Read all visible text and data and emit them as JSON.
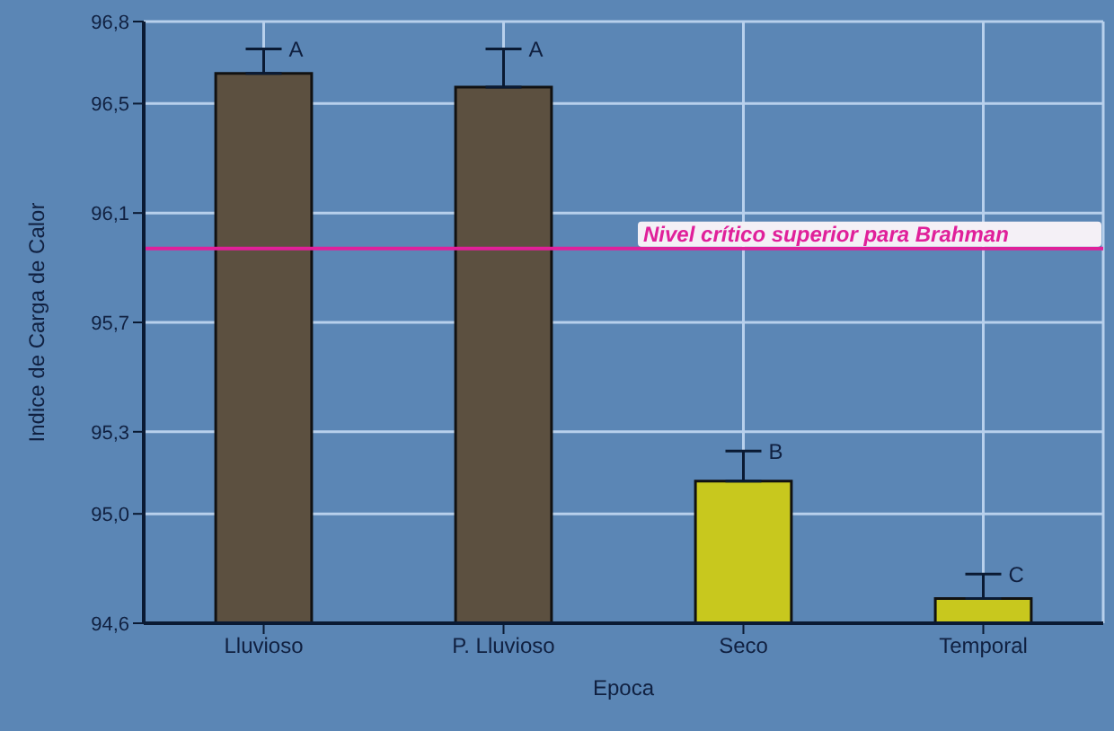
{
  "chart_data": {
    "type": "bar",
    "xlabel": "Epoca",
    "ylabel": "Indice de Carga de Calor",
    "categories": [
      "Lluvioso",
      "P. Lluvioso",
      "Seco",
      "Temporal"
    ],
    "values": [
      96.61,
      96.56,
      95.12,
      94.69
    ],
    "colors": [
      "#5c5040",
      "#5c5040",
      "#c8c81e",
      "#c8c81e"
    ],
    "errors": [
      [
        96.61,
        96.7
      ],
      [
        96.56,
        96.7
      ],
      [
        95.12,
        95.23
      ],
      [
        94.69,
        94.78
      ]
    ],
    "ylim": [
      94.6,
      96.8
    ],
    "yticks": [
      {
        "value": 94.6,
        "label": "94,6"
      },
      {
        "value": 95.0,
        "label": "95,0"
      },
      {
        "value": 95.3,
        "label": "95,3"
      },
      {
        "value": 95.7,
        "label": "95,7"
      },
      {
        "value": 96.1,
        "label": "96,1"
      },
      {
        "value": 96.5,
        "label": "96,5"
      },
      {
        "value": 96.8,
        "label": "96,8"
      }
    ],
    "grid": true,
    "ref_lines": [
      {
        "axis": "y",
        "value": 95.97,
        "label": "Nivel crítico superior para Brahman",
        "color": "#e0209a"
      }
    ],
    "annotations": [
      {
        "text": "A",
        "x": "Lluvioso",
        "y": 96.7
      },
      {
        "text": "A",
        "x": "P. Lluvioso",
        "y": 96.7
      },
      {
        "text": "B",
        "x": "Seco",
        "y": 95.23
      },
      {
        "text": "C",
        "x": "Temporal",
        "y": 94.78
      }
    ]
  }
}
